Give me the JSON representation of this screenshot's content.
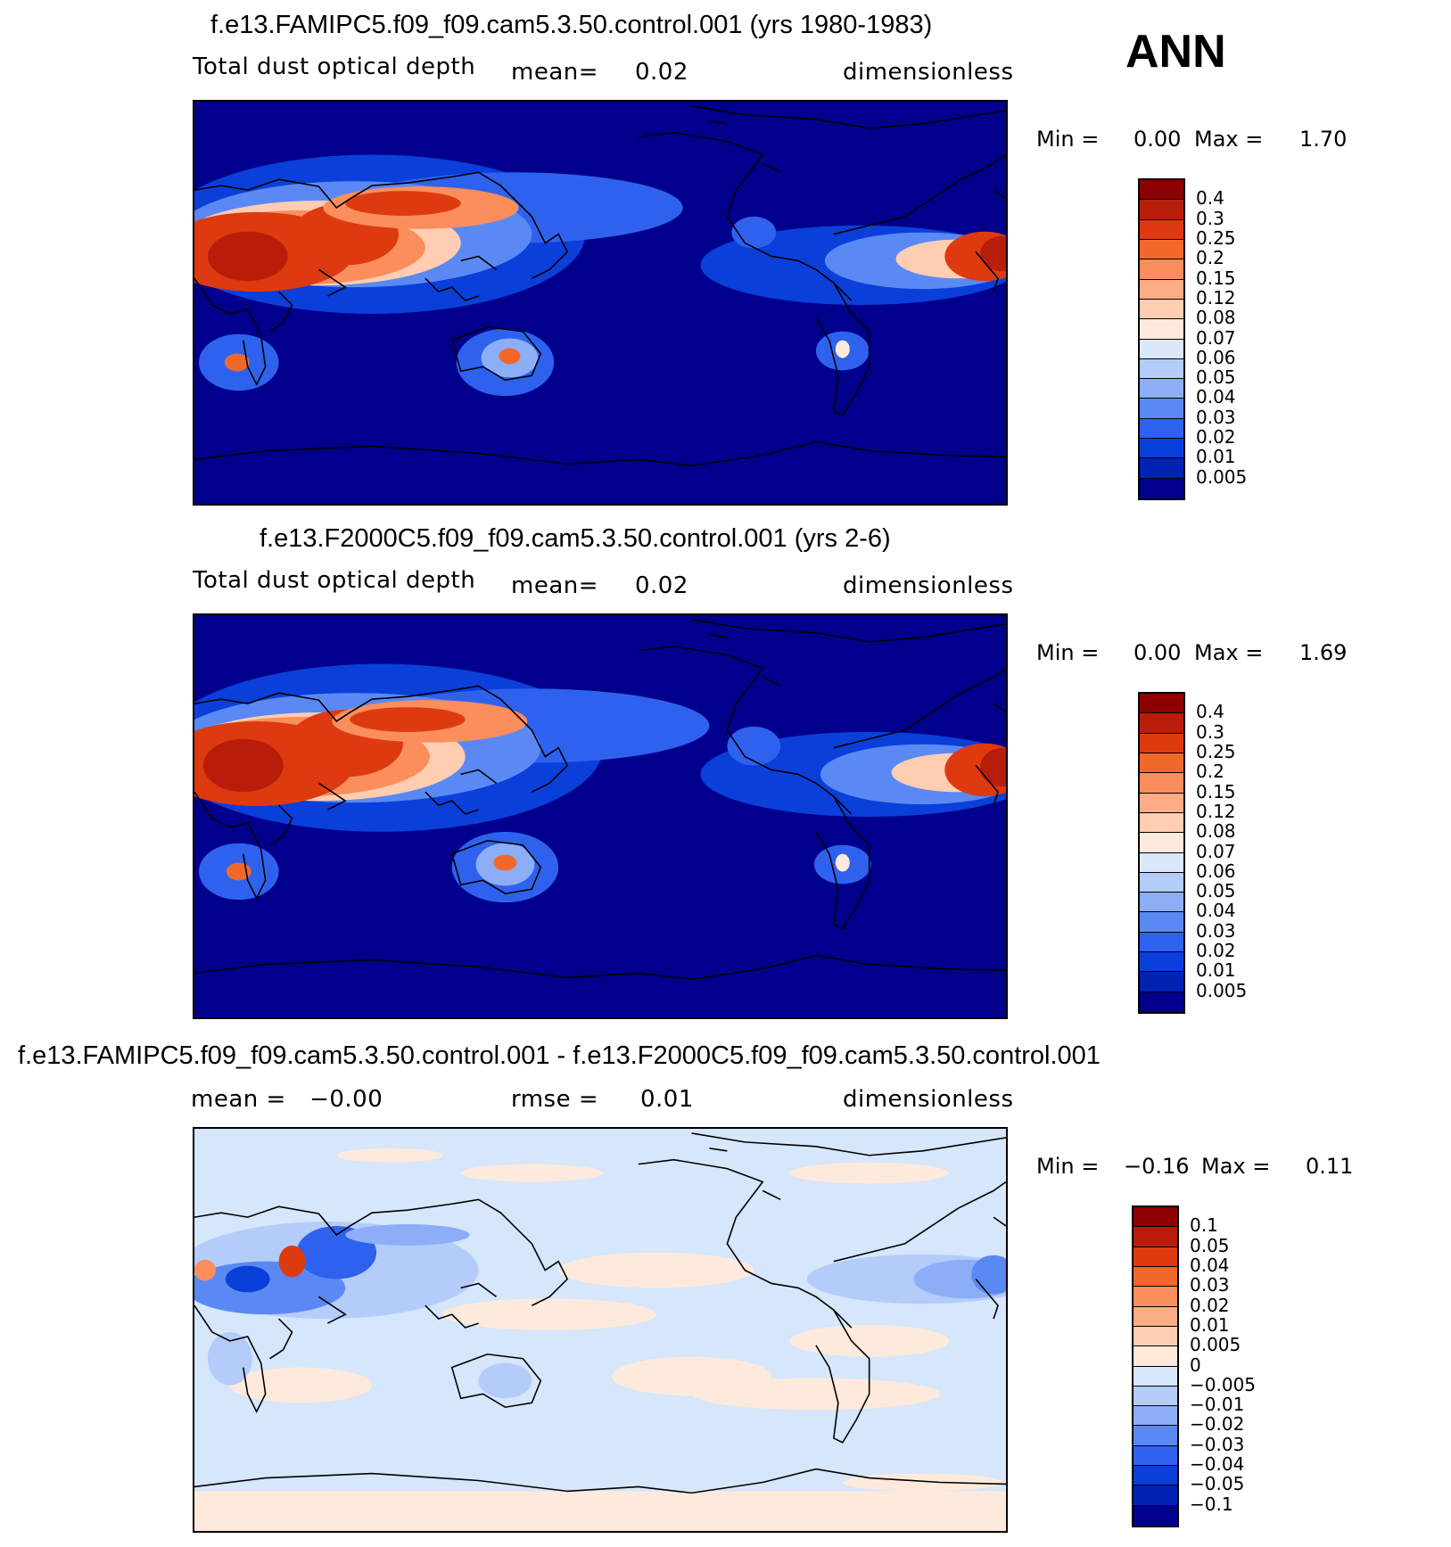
{
  "season": "ANN",
  "panels": [
    {
      "title": "f.e13.FAMIPC5.f09_f09.cam5.3.50.control.001 (yrs 1980-1983)",
      "sub_left": "Total dust optical depth",
      "sub_mid_label": "mean=",
      "sub_mid_value": "0.02",
      "sub_right": "dimensionless",
      "min_label": "Min =",
      "min_value": "0.00",
      "max_label": "Max =",
      "max_value": "1.70",
      "background_color": "#00008c",
      "levels": [
        "0.4",
        "0.3",
        "0.25",
        "0.2",
        "0.15",
        "0.12",
        "0.08",
        "0.07",
        "0.06",
        "0.05",
        "0.04",
        "0.03",
        "0.02",
        "0.01",
        "0.005"
      ],
      "colors": [
        "#8c0000",
        "#b81d0a",
        "#dd3a10",
        "#f2682b",
        "#fb8e5c",
        "#fdac85",
        "#fecdb2",
        "#feeadc",
        "#dbe7fb",
        "#b4ccfa",
        "#8caef7",
        "#5b89f3",
        "#2e62ee",
        "#0a3fda",
        "#0023b4",
        "#00008c"
      ]
    },
    {
      "title": "f.e13.F2000C5.f09_f09.cam5.3.50.control.001 (yrs 2-6)",
      "sub_left": "Total dust optical depth",
      "sub_mid_label": "mean=",
      "sub_mid_value": "0.02",
      "sub_right": "dimensionless",
      "min_label": "Min =",
      "min_value": "0.00",
      "max_label": "Max =",
      "max_value": "1.69",
      "background_color": "#00008c",
      "levels": [
        "0.4",
        "0.3",
        "0.25",
        "0.2",
        "0.15",
        "0.12",
        "0.08",
        "0.07",
        "0.06",
        "0.05",
        "0.04",
        "0.03",
        "0.02",
        "0.01",
        "0.005"
      ],
      "colors": [
        "#8c0000",
        "#b81d0a",
        "#dd3a10",
        "#f2682b",
        "#fb8e5c",
        "#fdac85",
        "#fecdb2",
        "#feeadc",
        "#dbe7fb",
        "#b4ccfa",
        "#8caef7",
        "#5b89f3",
        "#2e62ee",
        "#0a3fda",
        "#0023b4",
        "#00008c"
      ]
    },
    {
      "title": "f.e13.FAMIPC5.f09_f09.cam5.3.50.control.001 - f.e13.F2000C5.f09_f09.cam5.3.50.control.001",
      "sub_left": "mean =   −0.00",
      "sub_mid_label": "rmse =",
      "sub_mid_value": "0.01",
      "sub_right": "dimensionless",
      "min_label": "Min =",
      "min_value": "−0.16",
      "max_label": "Max =",
      "max_value": "0.11",
      "background_color": "#d6e6fb",
      "levels": [
        "0.1",
        "0.05",
        "0.04",
        "0.03",
        "0.02",
        "0.01",
        "0.005",
        "0",
        "−0.005",
        "−0.01",
        "−0.02",
        "−0.03",
        "−0.04",
        "−0.05",
        "−0.1"
      ],
      "colors": [
        "#8c0000",
        "#b81d0a",
        "#dd3a10",
        "#f2682b",
        "#fb8e5c",
        "#fdac85",
        "#fecdb2",
        "#feeadc",
        "#d6e6fb",
        "#b4ccfa",
        "#8caef7",
        "#5b89f3",
        "#2e62ee",
        "#0a3fda",
        "#0023b4",
        "#00008c"
      ]
    }
  ],
  "chart_data": {
    "type": "heatmap",
    "variable": "Total dust optical depth",
    "units": "dimensionless",
    "maps": [
      {
        "case": "f.e13.FAMIPC5.f09_f09.cam5.3.50.control.001",
        "years": "yrs 1980-1983",
        "mean": 0.02,
        "min": 0.0,
        "max": 1.7
      },
      {
        "case": "f.e13.F2000C5.f09_f09.cam5.3.50.control.001",
        "years": "yrs 2-6",
        "mean": 0.02,
        "min": 0.0,
        "max": 1.69
      },
      {
        "case": "difference",
        "mean": -0.0,
        "rmse": 0.01,
        "min": -0.16,
        "max": 0.11
      }
    ]
  }
}
